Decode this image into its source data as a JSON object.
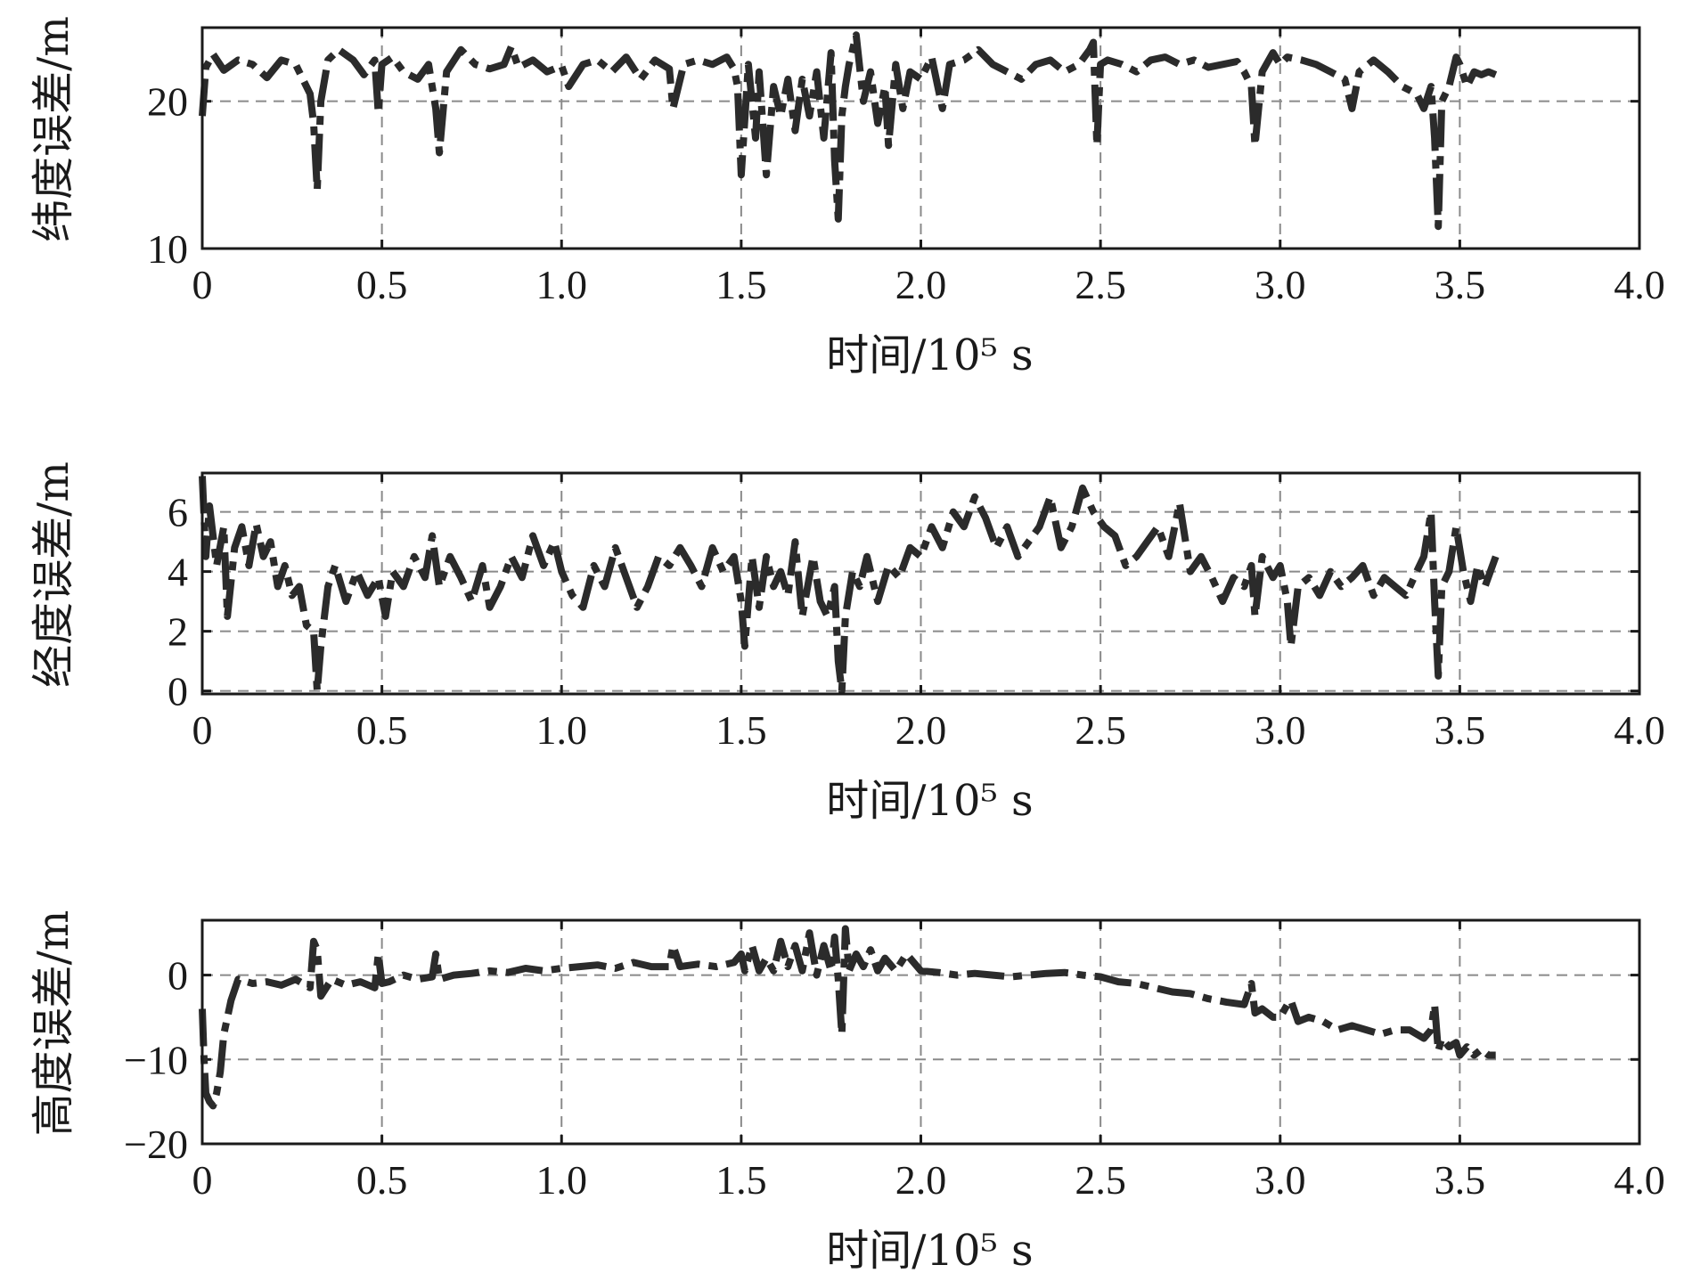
{
  "colors": {
    "series": "#2b2b2b",
    "grid": "#8a8a8a",
    "frame": "#1a1a1a",
    "background": "#ffffff"
  },
  "chart_data": [
    {
      "type": "line",
      "ylabel": "纬度误差/m",
      "xlabel": "时间/10⁵ s",
      "xlim": [
        0,
        4.0
      ],
      "ylim": [
        10,
        25
      ],
      "grid": true,
      "legend": "none",
      "xticks": [
        0,
        0.5,
        1.0,
        1.5,
        2.0,
        2.5,
        3.0,
        3.5,
        4.0
      ],
      "xtick_labels": [
        "0",
        "0.5",
        "1.0",
        "1.5",
        "2.0",
        "2.5",
        "3.0",
        "3.5",
        "4.0"
      ],
      "yticks": [
        10,
        20
      ],
      "ytick_labels": [
        "10",
        "20"
      ],
      "ygrid": [
        20
      ],
      "series": [
        {
          "x": [
            0.0,
            0.01,
            0.03,
            0.06,
            0.1,
            0.14,
            0.18,
            0.22,
            0.26,
            0.3,
            0.31,
            0.32,
            0.33,
            0.35,
            0.38,
            0.42,
            0.45,
            0.48,
            0.49,
            0.5,
            0.53,
            0.56,
            0.6,
            0.63,
            0.65,
            0.66,
            0.68,
            0.72,
            0.76,
            0.8,
            0.84,
            0.86,
            0.88,
            0.92,
            0.96,
            1.0,
            1.02,
            1.06,
            1.1,
            1.14,
            1.18,
            1.22,
            1.26,
            1.3,
            1.31,
            1.34,
            1.38,
            1.42,
            1.46,
            1.48,
            1.49,
            1.5,
            1.52,
            1.54,
            1.55,
            1.57,
            1.59,
            1.61,
            1.63,
            1.65,
            1.67,
            1.69,
            1.71,
            1.73,
            1.75,
            1.76,
            1.77,
            1.78,
            1.79,
            1.8,
            1.82,
            1.84,
            1.86,
            1.88,
            1.9,
            1.91,
            1.93,
            1.95,
            1.97,
            2.0,
            2.03,
            2.06,
            2.08,
            2.12,
            2.16,
            2.2,
            2.24,
            2.28,
            2.32,
            2.36,
            2.4,
            2.44,
            2.47,
            2.48,
            2.49,
            2.5,
            2.52,
            2.56,
            2.6,
            2.64,
            2.68,
            2.72,
            2.76,
            2.8,
            2.84,
            2.88,
            2.9,
            2.92,
            2.93,
            2.95,
            2.98,
            3.0,
            3.02,
            3.06,
            3.1,
            3.14,
            3.18,
            3.2,
            3.22,
            3.26,
            3.3,
            3.34,
            3.38,
            3.4,
            3.42,
            3.43,
            3.44,
            3.45,
            3.47,
            3.49,
            3.5,
            3.52,
            3.54,
            3.56,
            3.58,
            3.6
          ],
          "y": [
            19.0,
            22.3,
            23.2,
            22.1,
            22.8,
            22.5,
            21.6,
            22.8,
            22.5,
            20.5,
            18.5,
            14.0,
            20.0,
            22.8,
            23.5,
            22.8,
            21.8,
            22.8,
            19.2,
            22.5,
            23.0,
            22.0,
            21.5,
            22.5,
            19.5,
            16.5,
            22.0,
            23.5,
            22.5,
            22.2,
            22.5,
            23.7,
            22.3,
            22.8,
            22.0,
            22.4,
            21.0,
            22.5,
            22.8,
            22.0,
            23.0,
            21.5,
            22.8,
            22.2,
            19.5,
            22.5,
            22.8,
            22.5,
            23.0,
            22.2,
            21.0,
            15.0,
            22.5,
            17.5,
            22.0,
            15.0,
            21.0,
            19.0,
            21.5,
            18.0,
            21.5,
            19.0,
            22.0,
            17.5,
            23.3,
            16.0,
            12.0,
            19.0,
            21.0,
            22.5,
            24.5,
            20.0,
            22.0,
            18.5,
            21.0,
            17.0,
            22.5,
            19.5,
            22.0,
            21.5,
            23.0,
            19.5,
            22.5,
            22.8,
            23.5,
            22.5,
            22.0,
            21.5,
            22.5,
            22.8,
            22.0,
            22.5,
            23.5,
            24.0,
            17.0,
            22.5,
            22.8,
            22.5,
            22.0,
            22.8,
            23.0,
            22.5,
            22.8,
            22.3,
            22.5,
            22.7,
            22.0,
            21.0,
            17.0,
            22.0,
            23.3,
            22.5,
            23.0,
            22.8,
            22.5,
            22.0,
            21.5,
            19.5,
            22.0,
            22.8,
            22.0,
            21.0,
            20.5,
            19.5,
            21.0,
            17.5,
            11.5,
            20.0,
            21.0,
            23.0,
            22.5,
            21.0,
            22.0,
            21.8,
            22.0,
            21.8
          ]
        }
      ]
    },
    {
      "type": "line",
      "ylabel": "经度误差/m",
      "xlabel": "时间/10⁵ s",
      "xlim": [
        0,
        4.0
      ],
      "ylim": [
        -0.1,
        7.3
      ],
      "grid": true,
      "legend": "none",
      "xticks": [
        0,
        0.5,
        1.0,
        1.5,
        2.0,
        2.5,
        3.0,
        3.5,
        4.0
      ],
      "xtick_labels": [
        "0",
        "0.5",
        "1.0",
        "1.5",
        "2.0",
        "2.5",
        "3.0",
        "3.5",
        "4.0"
      ],
      "yticks": [
        0,
        2,
        4,
        6
      ],
      "ytick_labels": [
        "0",
        "2",
        "4",
        "6"
      ],
      "ygrid": [
        0,
        2,
        4,
        6
      ],
      "series": [
        {
          "x": [
            0.0,
            0.01,
            0.02,
            0.04,
            0.06,
            0.07,
            0.09,
            0.11,
            0.13,
            0.15,
            0.17,
            0.19,
            0.21,
            0.23,
            0.25,
            0.27,
            0.29,
            0.31,
            0.32,
            0.33,
            0.35,
            0.37,
            0.4,
            0.43,
            0.46,
            0.49,
            0.51,
            0.53,
            0.56,
            0.59,
            0.62,
            0.64,
            0.66,
            0.69,
            0.72,
            0.75,
            0.78,
            0.8,
            0.83,
            0.86,
            0.89,
            0.92,
            0.95,
            0.98,
            1.0,
            1.03,
            1.06,
            1.09,
            1.12,
            1.15,
            1.18,
            1.21,
            1.24,
            1.27,
            1.3,
            1.33,
            1.36,
            1.39,
            1.42,
            1.45,
            1.48,
            1.5,
            1.51,
            1.53,
            1.55,
            1.57,
            1.59,
            1.61,
            1.63,
            1.65,
            1.67,
            1.7,
            1.72,
            1.74,
            1.76,
            1.77,
            1.78,
            1.79,
            1.81,
            1.83,
            1.85,
            1.88,
            1.91,
            1.94,
            1.97,
            2.0,
            2.03,
            2.06,
            2.09,
            2.12,
            2.15,
            2.18,
            2.21,
            2.24,
            2.27,
            2.3,
            2.33,
            2.36,
            2.39,
            2.42,
            2.45,
            2.48,
            2.51,
            2.54,
            2.57,
            2.6,
            2.63,
            2.66,
            2.69,
            2.72,
            2.75,
            2.78,
            2.81,
            2.84,
            2.87,
            2.9,
            2.92,
            2.93,
            2.95,
            2.98,
            3.0,
            3.02,
            3.03,
            3.05,
            3.08,
            3.11,
            3.14,
            3.17,
            3.2,
            3.23,
            3.26,
            3.29,
            3.32,
            3.35,
            3.38,
            3.4,
            3.42,
            3.43,
            3.44,
            3.45,
            3.47,
            3.49,
            3.51,
            3.53,
            3.55,
            3.57,
            3.6
          ],
          "y": [
            7.2,
            4.5,
            6.2,
            4.2,
            5.5,
            2.5,
            4.8,
            5.5,
            4.2,
            5.6,
            4.5,
            5.0,
            3.5,
            4.2,
            3.2,
            3.5,
            2.2,
            2.0,
            0.0,
            1.5,
            3.5,
            4.2,
            3.0,
            4.0,
            3.2,
            3.8,
            2.5,
            4.0,
            3.5,
            4.5,
            3.8,
            5.2,
            3.5,
            4.5,
            3.8,
            3.0,
            4.2,
            2.8,
            3.5,
            4.5,
            3.8,
            5.2,
            4.2,
            5.0,
            4.0,
            3.2,
            2.8,
            4.2,
            3.5,
            4.8,
            3.8,
            2.8,
            3.5,
            4.5,
            4.2,
            4.8,
            4.2,
            3.5,
            4.8,
            4.0,
            4.5,
            3.0,
            1.5,
            4.5,
            2.8,
            4.5,
            3.5,
            4.0,
            3.2,
            5.0,
            2.5,
            4.5,
            3.0,
            2.5,
            3.5,
            1.0,
            0.0,
            2.5,
            4.0,
            3.5,
            4.5,
            3.0,
            4.2,
            3.8,
            4.8,
            4.5,
            5.5,
            4.8,
            6.0,
            5.5,
            6.5,
            5.8,
            4.8,
            5.5,
            4.5,
            5.0,
            5.5,
            6.5,
            4.8,
            5.5,
            6.8,
            6.0,
            5.5,
            5.2,
            4.2,
            4.5,
            5.0,
            5.5,
            4.5,
            6.3,
            4.0,
            4.5,
            3.8,
            3.0,
            3.8,
            3.5,
            4.2,
            2.5,
            4.5,
            3.8,
            4.2,
            3.0,
            1.5,
            3.5,
            3.8,
            3.2,
            4.0,
            3.5,
            3.8,
            4.2,
            3.2,
            3.8,
            3.5,
            3.2,
            4.0,
            4.5,
            6.0,
            3.0,
            0.5,
            3.5,
            4.0,
            5.5,
            4.0,
            3.0,
            4.2,
            3.5,
            4.5
          ]
        }
      ]
    },
    {
      "type": "line",
      "ylabel": "高度误差/m",
      "xlabel": "时间/10⁵ s",
      "xlim": [
        0,
        4.0
      ],
      "ylim": [
        -20,
        6.5
      ],
      "grid": true,
      "legend": "none",
      "xticks": [
        0,
        0.5,
        1.0,
        1.5,
        2.0,
        2.5,
        3.0,
        3.5,
        4.0
      ],
      "xtick_labels": [
        "0",
        "0.5",
        "1.0",
        "1.5",
        "2.0",
        "2.5",
        "3.0",
        "3.5",
        "4.0"
      ],
      "yticks": [
        -20,
        -10,
        0
      ],
      "ytick_labels": [
        "−20",
        "−10",
        "0"
      ],
      "ygrid": [
        -10,
        0
      ],
      "series": [
        {
          "x": [
            0.0,
            0.005,
            0.01,
            0.02,
            0.03,
            0.04,
            0.05,
            0.06,
            0.08,
            0.1,
            0.14,
            0.18,
            0.22,
            0.26,
            0.3,
            0.31,
            0.32,
            0.33,
            0.36,
            0.4,
            0.44,
            0.48,
            0.49,
            0.5,
            0.52,
            0.56,
            0.6,
            0.64,
            0.65,
            0.66,
            0.7,
            0.75,
            0.8,
            0.85,
            0.9,
            0.95,
            1.0,
            1.05,
            1.1,
            1.15,
            1.2,
            1.25,
            1.3,
            1.31,
            1.33,
            1.38,
            1.43,
            1.48,
            1.5,
            1.51,
            1.53,
            1.55,
            1.57,
            1.59,
            1.61,
            1.63,
            1.65,
            1.67,
            1.69,
            1.71,
            1.73,
            1.75,
            1.76,
            1.77,
            1.78,
            1.79,
            1.8,
            1.82,
            1.84,
            1.86,
            1.88,
            1.9,
            1.93,
            1.96,
            2.0,
            2.05,
            2.1,
            2.15,
            2.2,
            2.25,
            2.3,
            2.35,
            2.4,
            2.45,
            2.5,
            2.55,
            2.6,
            2.65,
            2.7,
            2.75,
            2.8,
            2.85,
            2.9,
            2.92,
            2.93,
            2.95,
            2.98,
            3.0,
            3.02,
            3.03,
            3.05,
            3.08,
            3.12,
            3.16,
            3.2,
            3.24,
            3.28,
            3.32,
            3.36,
            3.4,
            3.42,
            3.43,
            3.44,
            3.45,
            3.47,
            3.49,
            3.5,
            3.52,
            3.54,
            3.56,
            3.58,
            3.6
          ],
          "y": [
            -4.0,
            -10.0,
            -14.0,
            -15.0,
            -15.5,
            -14.0,
            -11.5,
            -7.0,
            -3.0,
            -0.5,
            -1.0,
            -0.8,
            -1.2,
            -0.5,
            -1.5,
            4.0,
            3.0,
            -2.5,
            -0.5,
            -1.2,
            -0.8,
            -1.5,
            2.5,
            -1.0,
            -0.8,
            0.0,
            -0.5,
            -0.2,
            2.5,
            -0.5,
            0.0,
            0.2,
            0.5,
            0.3,
            0.8,
            0.5,
            0.8,
            1.0,
            1.2,
            0.8,
            1.5,
            1.0,
            1.0,
            3.5,
            1.0,
            1.3,
            1.0,
            1.5,
            2.5,
            0.5,
            3.5,
            0.5,
            2.0,
            0.5,
            4.0,
            1.0,
            3.5,
            0.5,
            5.0,
            0.0,
            3.5,
            0.5,
            4.5,
            -0.5,
            -7.0,
            5.5,
            0.5,
            2.5,
            1.0,
            3.0,
            0.5,
            2.0,
            0.5,
            2.5,
            0.5,
            0.3,
            0.0,
            0.2,
            0.0,
            -0.2,
            0.0,
            0.2,
            0.3,
            0.0,
            -0.2,
            -0.8,
            -1.0,
            -1.5,
            -2.0,
            -2.2,
            -2.8,
            -3.2,
            -3.5,
            -1.0,
            -4.5,
            -4.0,
            -5.0,
            -5.0,
            -3.5,
            -3.0,
            -5.5,
            -5.0,
            -5.5,
            -6.5,
            -6.0,
            -6.5,
            -7.0,
            -6.5,
            -6.5,
            -7.5,
            -6.5,
            -3.5,
            -9.0,
            -7.5,
            -8.5,
            -8.0,
            -9.5,
            -8.5,
            -9.5,
            -8.8,
            -9.5,
            -9.5
          ]
        }
      ]
    }
  ]
}
